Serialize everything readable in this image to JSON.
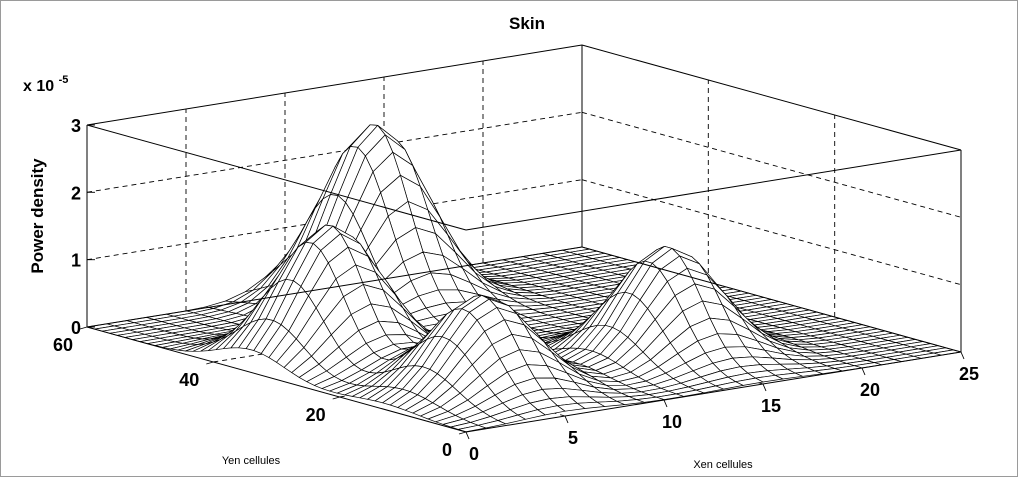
{
  "chart_data": {
    "type": "surface",
    "title": "Skin",
    "xlabel": "Xen cellules",
    "ylabel": "Yen cellules",
    "zlabel": "Power density",
    "z_multiplier": "x 10",
    "z_exponent": "-5",
    "x_ticks": [
      "0",
      "5",
      "10",
      "15",
      "20",
      "25"
    ],
    "y_ticks": [
      "0",
      "20",
      "40",
      "60"
    ],
    "z_ticks": [
      "0",
      "1",
      "2",
      "3"
    ],
    "xlim": [
      0,
      25
    ],
    "ylim": [
      0,
      60
    ],
    "zlim": [
      0,
      3
    ],
    "grid": true,
    "peaks": [
      {
        "x": 4,
        "y": 34,
        "z": 2.0
      },
      {
        "x": 5,
        "y": 13,
        "z": 1.45
      },
      {
        "x": 12,
        "y": 52,
        "z": 2.65
      },
      {
        "x": 15,
        "y": 15,
        "z": 1.65
      }
    ],
    "colors": {
      "mesh": "#000000",
      "surface": "#ffffff",
      "grid": "#000000"
    }
  }
}
